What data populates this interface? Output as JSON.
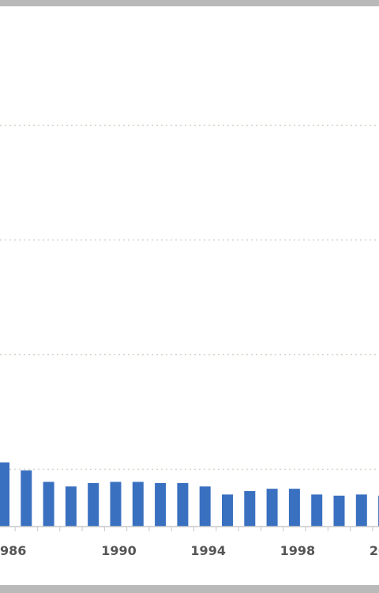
{
  "chart_data": {
    "type": "bar",
    "title": "",
    "xlabel": "",
    "ylabel": "",
    "grid": true,
    "series_color": "#3a70c0",
    "categories": [
      "1985",
      "1986",
      "1987",
      "1988",
      "1989",
      "1990",
      "1991",
      "1992",
      "1993",
      "1994",
      "1995",
      "1996",
      "1997",
      "1998",
      "1999",
      "2000",
      "2001",
      "2002",
      "2003"
    ],
    "values": [
      56,
      49,
      39,
      35,
      38,
      39,
      39,
      38,
      38,
      35,
      28,
      31,
      33,
      33,
      28,
      27,
      28,
      27,
      29
    ],
    "ylim": [
      0,
      350
    ],
    "yticks": [
      50,
      150,
      250,
      350
    ],
    "x_tick_labels": [
      {
        "category": "1986",
        "label": "986"
      },
      {
        "category": "1990",
        "label": "1990"
      },
      {
        "category": "1994",
        "label": "1994"
      },
      {
        "category": "1998",
        "label": "1998"
      },
      {
        "category": "2002",
        "label": "2002"
      }
    ]
  }
}
